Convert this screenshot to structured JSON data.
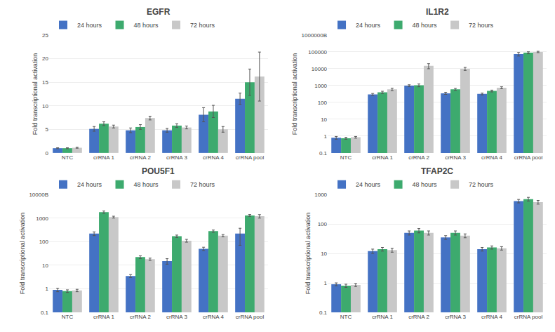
{
  "chart_data": [
    {
      "type": "bar",
      "title": "EGFR",
      "ylabel": "Fold transcriptional activation",
      "categories": [
        "NTC",
        "crRNA 1",
        "crRNA 2",
        "crRNA 3",
        "crRNA 4",
        "crRNA pool"
      ],
      "series": [
        {
          "name": "24 hours",
          "color": "#4472C4",
          "values": [
            1.0,
            5.1,
            4.8,
            4.8,
            8.1,
            11.5
          ],
          "errors": [
            0.1,
            0.5,
            0.5,
            0.4,
            1.5,
            1.2
          ]
        },
        {
          "name": "48 hours",
          "color": "#3DAA6E",
          "values": [
            1.0,
            6.2,
            5.5,
            5.8,
            8.8,
            15.0
          ],
          "errors": [
            0.1,
            0.4,
            0.5,
            0.4,
            1.3,
            2.8
          ]
        },
        {
          "name": "72 hours",
          "color": "#C8C8C8",
          "values": [
            1.1,
            5.6,
            7.4,
            5.4,
            5.0,
            16.2
          ],
          "errors": [
            0.1,
            0.3,
            0.4,
            0.3,
            0.6,
            5.2
          ]
        }
      ],
      "ylim": [
        0,
        25
      ],
      "yticks": [
        0,
        5,
        10,
        15,
        20,
        25
      ],
      "grid": true,
      "legend": "upper left"
    },
    {
      "type": "bar",
      "title": "IL1R2",
      "ylabel": "Fold transcriptional activation",
      "categories": [
        "NTC",
        "crRNA 1",
        "crRNA 2",
        "crRNA 3",
        "crRNA 4",
        "crRNA pool"
      ],
      "series": [
        {
          "name": "24 hours",
          "color": "#4472C4",
          "values": [
            0.8,
            300,
            1000,
            350,
            320,
            75000
          ],
          "errors": [
            0.15,
            40,
            120,
            50,
            40,
            18000
          ]
        },
        {
          "name": "48 hours",
          "color": "#3DAA6E",
          "values": [
            0.75,
            400,
            1050,
            600,
            480,
            90000
          ],
          "errors": [
            0.1,
            60,
            200,
            80,
            60,
            12000
          ]
        },
        {
          "name": "72 hours",
          "color": "#C8C8C8",
          "values": [
            0.85,
            600,
            15000,
            10000,
            750,
            100000
          ],
          "errors": [
            0.1,
            100,
            5000,
            2000,
            100,
            9000
          ]
        }
      ],
      "log": "y",
      "ylim": [
        0.1,
        1000000
      ],
      "yticks": [
        0.1,
        1,
        10,
        100,
        1000,
        10000,
        100000,
        {
          "value": 1000000,
          "label": "1000000B"
        }
      ],
      "grid": true,
      "legend": "upper left"
    },
    {
      "type": "bar",
      "title": "POU5F1",
      "ylabel": "Fold transcriptional activation",
      "categories": [
        "NTC",
        "crRNA 1",
        "crRNA 2",
        "crRNA 3",
        "crRNA 4",
        "crRNA pool"
      ],
      "series": [
        {
          "name": "24 hours",
          "color": "#4472C4",
          "values": [
            0.9,
            220,
            3.5,
            15,
            50,
            220
          ],
          "errors": [
            0.15,
            40,
            0.5,
            4,
            8,
            150
          ]
        },
        {
          "name": "48 hours",
          "color": "#3DAA6E",
          "values": [
            0.8,
            1800,
            22,
            170,
            280,
            1300
          ],
          "errors": [
            0.1,
            200,
            3,
            20,
            30,
            120
          ]
        },
        {
          "name": "72 hours",
          "color": "#C8C8C8",
          "values": [
            0.85,
            1100,
            18,
            110,
            180,
            1200
          ],
          "errors": [
            0.1,
            100,
            2,
            15,
            20,
            200
          ]
        }
      ],
      "log": "y",
      "ylim": [
        0.1,
        10000
      ],
      "yticks": [
        0.1,
        1,
        10,
        100,
        1000,
        {
          "value": 10000,
          "label": "10000B"
        }
      ],
      "grid": true,
      "legend": "upper left"
    },
    {
      "type": "bar",
      "title": "TFAP2C",
      "ylabel": "Fold transcriptional activation",
      "categories": [
        "NTC",
        "crRNA 1",
        "crRNA 2",
        "crRNA 3",
        "crRNA 4",
        "crRNA pool"
      ],
      "series": [
        {
          "name": "24 hours",
          "color": "#4472C4",
          "values": [
            0.9,
            12,
            50,
            35,
            14,
            600
          ],
          "errors": [
            0.1,
            2,
            8,
            5,
            2,
            80
          ]
        },
        {
          "name": "48 hours",
          "color": "#3DAA6E",
          "values": [
            0.8,
            14,
            60,
            50,
            16,
            700
          ],
          "errors": [
            0.1,
            2,
            10,
            8,
            2,
            100
          ]
        },
        {
          "name": "72 hours",
          "color": "#C8C8C8",
          "values": [
            0.85,
            13,
            50,
            40,
            15,
            550
          ],
          "errors": [
            0.1,
            2,
            8,
            6,
            2,
            80
          ]
        }
      ],
      "log": "y",
      "ylim": [
        0.1,
        1000
      ],
      "yticks": [
        0.1,
        1,
        10,
        100,
        1000
      ],
      "grid": true,
      "legend": "upper left"
    }
  ]
}
